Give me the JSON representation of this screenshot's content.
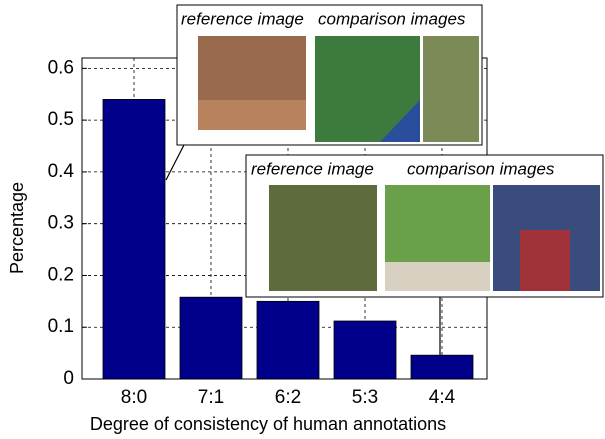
{
  "chart_data": {
    "type": "bar",
    "xlabel": "Degree of consistency of human annotations",
    "ylabel": "Percentage",
    "categories": [
      "8:0",
      "7:1",
      "6:2",
      "5:3",
      "4:4"
    ],
    "values": [
      0.54,
      0.158,
      0.15,
      0.112,
      0.046
    ],
    "color": "#00008b",
    "ylim": [
      0,
      0.62
    ],
    "yticks": [
      0,
      0.1,
      0.2,
      0.3,
      0.4,
      0.5,
      0.6
    ],
    "grid": true,
    "annotations": [
      "reference image",
      "comparison images",
      "reference image",
      "comparison images"
    ]
  }
}
